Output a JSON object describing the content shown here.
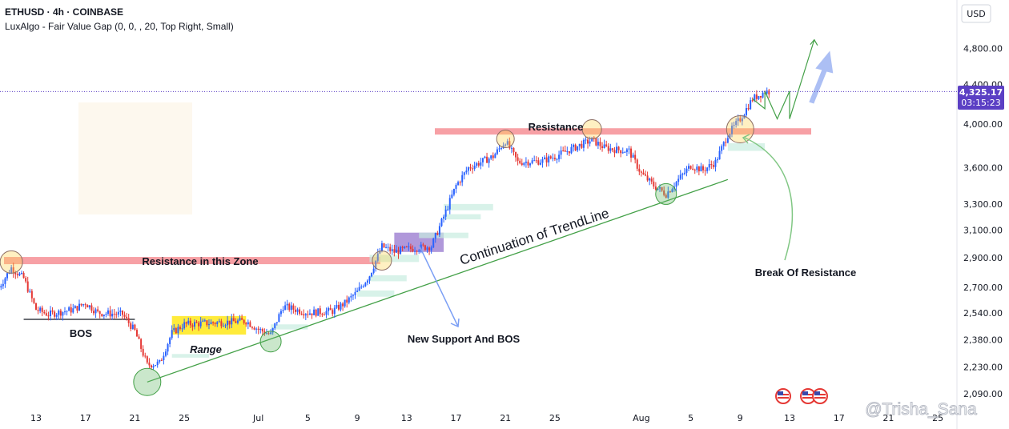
{
  "header": {
    "symbol_line": "ETHUSD · 4h · COINBASE",
    "indicator_line": "LuxAlgo - Fair Value Gap (0, 0, , 20, Top Right, Small)"
  },
  "currency_button": "USD",
  "price_tag": {
    "price": "4,325.17",
    "countdown": "03:15:23"
  },
  "annotations": {
    "resistance_top": "Resistance",
    "resistance_zone": "Resistance in this Zone",
    "bos": "BOS",
    "range": "Range",
    "new_support": "New Support And BOS",
    "trendline": "Continuation of TrendLine",
    "break_resistance": "Break Of Resistance"
  },
  "watermark": "@Trisha_Sana",
  "colors": {
    "up": "#2962ff",
    "down": "#e53935",
    "resistance_zone": "#f7a0a5",
    "trendline": "#43a047",
    "range_box": "#ffeb3b",
    "orderblock": "#9575cd",
    "fvg": "#c8ece0",
    "arrow": "#90a9f0",
    "price_tag": "#5b3fc4"
  },
  "chart_data": {
    "type": "candlestick",
    "symbol": "ETHUSD",
    "timeframe": "4h",
    "exchange": "COINBASE",
    "y_scale": "log",
    "ylim": [
      2000,
      5200
    ],
    "y_ticks": [
      {
        "value": 4800,
        "label": "4,800.00"
      },
      {
        "value": 4400,
        "label": "4,400.00"
      },
      {
        "value": 4000,
        "label": "4,000.00"
      },
      {
        "value": 3600,
        "label": "3,600.00"
      },
      {
        "value": 3300,
        "label": "3,300.00"
      },
      {
        "value": 3100,
        "label": "3,100.00"
      },
      {
        "value": 2900,
        "label": "2,900.00"
      },
      {
        "value": 2700,
        "label": "2,700.00"
      },
      {
        "value": 2540,
        "label": "2,540.00"
      },
      {
        "value": 2380,
        "label": "2,380.00"
      },
      {
        "value": 2230,
        "label": "2,230.00"
      },
      {
        "value": 2090,
        "label": "2,090.00"
      }
    ],
    "x_ticks": [
      {
        "date": "2025-06-13",
        "label": "13"
      },
      {
        "date": "2025-06-17",
        "label": "17"
      },
      {
        "date": "2025-06-21",
        "label": "21"
      },
      {
        "date": "2025-06-25",
        "label": "25"
      },
      {
        "date": "2025-07-01",
        "label": "Jul"
      },
      {
        "date": "2025-07-05",
        "label": "5"
      },
      {
        "date": "2025-07-09",
        "label": "9"
      },
      {
        "date": "2025-07-13",
        "label": "13"
      },
      {
        "date": "2025-07-17",
        "label": "17"
      },
      {
        "date": "2025-07-21",
        "label": "21"
      },
      {
        "date": "2025-07-25",
        "label": "25"
      },
      {
        "date": "2025-08-01",
        "label": "Aug"
      },
      {
        "date": "2025-08-05",
        "label": "5"
      },
      {
        "date": "2025-08-09",
        "label": "9"
      },
      {
        "date": "2025-08-13",
        "label": "13"
      },
      {
        "date": "2025-08-17",
        "label": "17"
      },
      {
        "date": "2025-08-21",
        "label": "21"
      },
      {
        "date": "2025-08-25",
        "label": "25"
      }
    ],
    "x_range": [
      "2025-06-10",
      "2025-08-27"
    ],
    "last_date": "2025-08-11",
    "last_price": 4325.17,
    "price_path": [
      {
        "date": "2025-06-10",
        "price": 2700
      },
      {
        "date": "2025-06-11",
        "price": 2830
      },
      {
        "date": "2025-06-12",
        "price": 2760
      },
      {
        "date": "2025-06-13",
        "price": 2560
      },
      {
        "date": "2025-06-14",
        "price": 2530
      },
      {
        "date": "2025-06-16",
        "price": 2560
      },
      {
        "date": "2025-06-17",
        "price": 2600
      },
      {
        "date": "2025-06-18",
        "price": 2540
      },
      {
        "date": "2025-06-20",
        "price": 2530
      },
      {
        "date": "2025-06-21",
        "price": 2430
      },
      {
        "date": "2025-06-22",
        "price": 2240
      },
      {
        "date": "2025-06-23",
        "price": 2250
      },
      {
        "date": "2025-06-24",
        "price": 2420
      },
      {
        "date": "2025-06-25",
        "price": 2470
      },
      {
        "date": "2025-06-30",
        "price": 2490
      },
      {
        "date": "2025-07-01",
        "price": 2440
      },
      {
        "date": "2025-07-02",
        "price": 2410
      },
      {
        "date": "2025-07-03",
        "price": 2580
      },
      {
        "date": "2025-07-05",
        "price": 2540
      },
      {
        "date": "2025-07-07",
        "price": 2550
      },
      {
        "date": "2025-07-08",
        "price": 2600
      },
      {
        "date": "2025-07-09",
        "price": 2670
      },
      {
        "date": "2025-07-10",
        "price": 2780
      },
      {
        "date": "2025-07-11",
        "price": 2980
      },
      {
        "date": "2025-07-12",
        "price": 2940
      },
      {
        "date": "2025-07-13",
        "price": 2960
      },
      {
        "date": "2025-07-15",
        "price": 2980
      },
      {
        "date": "2025-07-16",
        "price": 3200
      },
      {
        "date": "2025-07-17",
        "price": 3450
      },
      {
        "date": "2025-07-18",
        "price": 3600
      },
      {
        "date": "2025-07-20",
        "price": 3700
      },
      {
        "date": "2025-07-21",
        "price": 3840
      },
      {
        "date": "2025-07-22",
        "price": 3650
      },
      {
        "date": "2025-07-24",
        "price": 3660
      },
      {
        "date": "2025-07-25",
        "price": 3700
      },
      {
        "date": "2025-07-27",
        "price": 3800
      },
      {
        "date": "2025-07-28",
        "price": 3850
      },
      {
        "date": "2025-07-29",
        "price": 3780
      },
      {
        "date": "2025-07-30",
        "price": 3760
      },
      {
        "date": "2025-07-31",
        "price": 3750
      },
      {
        "date": "2025-08-01",
        "price": 3550
      },
      {
        "date": "2025-08-02",
        "price": 3450
      },
      {
        "date": "2025-08-03",
        "price": 3380
      },
      {
        "date": "2025-08-04",
        "price": 3500
      },
      {
        "date": "2025-08-05",
        "price": 3620
      },
      {
        "date": "2025-08-06",
        "price": 3580
      },
      {
        "date": "2025-08-07",
        "price": 3650
      },
      {
        "date": "2025-08-08",
        "price": 3900
      },
      {
        "date": "2025-08-09",
        "price": 4050
      },
      {
        "date": "2025-08-10",
        "price": 4250
      },
      {
        "date": "2025-08-11",
        "price": 4325.17
      }
    ],
    "levels": {
      "resistance_top": [
        3900,
        3960
      ],
      "resistance_zone": [
        2855,
        2905
      ],
      "trendline": [
        {
          "date": "2025-06-22",
          "price": 2150
        },
        {
          "date": "2025-08-08",
          "price": 3500
        }
      ],
      "range_box": {
        "from": "2025-06-24",
        "to": "2025-06-30",
        "low": 2410,
        "high": 2520
      },
      "orderblock": {
        "from": "2025-07-12",
        "to": "2025-07-16",
        "low": 2940,
        "high": 3080
      },
      "bos_line": {
        "from": "2025-06-12",
        "to": "2025-06-21",
        "price": 2500
      }
    }
  }
}
